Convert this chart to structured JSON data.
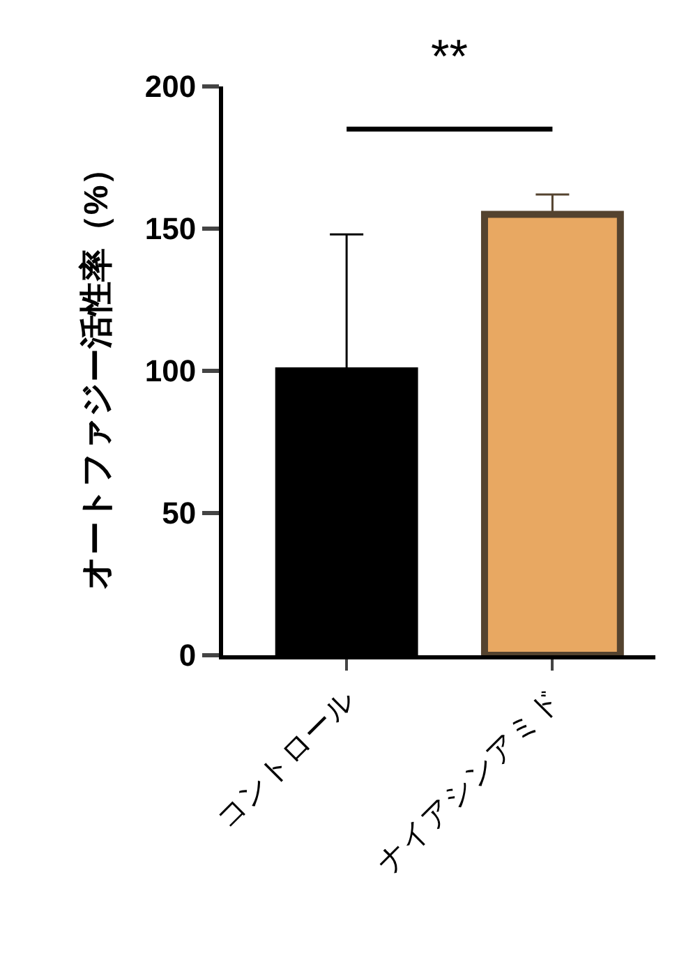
{
  "chart_data": {
    "type": "bar",
    "ylabel": "オートファジー活性率（%）",
    "categories": [
      "コントロール",
      "ナイアシンアミド"
    ],
    "values": [
      100,
      155
    ],
    "colors": [
      "#000000",
      "#e8a862"
    ],
    "errors": [
      [
        100,
        148
      ],
      [
        155,
        162
      ]
    ],
    "ylim": [
      0,
      200
    ],
    "yticks": [
      0,
      50,
      100,
      150,
      200
    ],
    "annotations": [
      "**"
    ],
    "grid": false
  }
}
